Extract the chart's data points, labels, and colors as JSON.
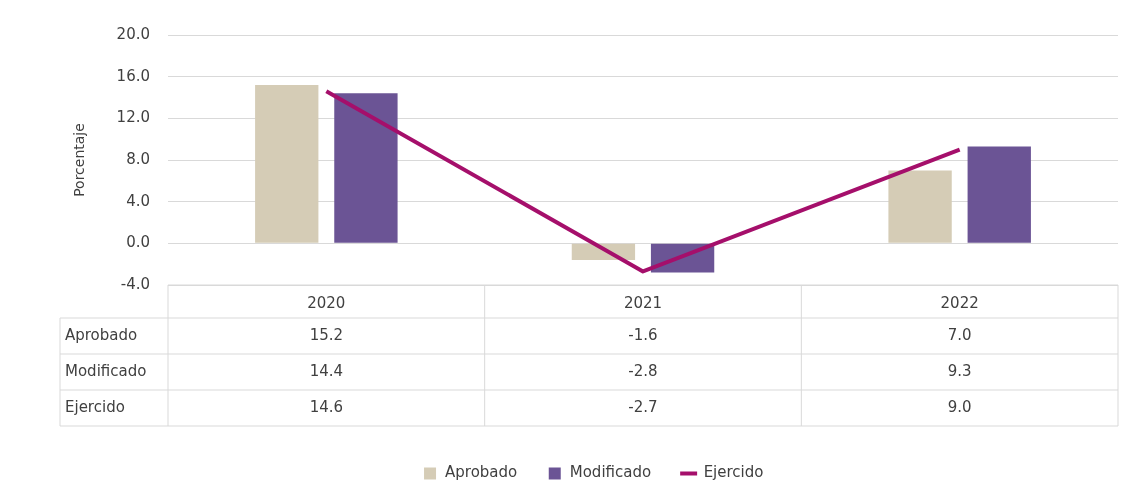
{
  "chart_data": {
    "type": "bar",
    "ylabel": "Porcentaje",
    "categories": [
      "2020",
      "2021",
      "2022"
    ],
    "series": [
      {
        "name": "Aprobado",
        "color": "#d5ccb6",
        "values": [
          15.2,
          -1.6,
          7.0
        ],
        "value_labels": [
          "15.2",
          "-1.6",
          "7.0"
        ]
      },
      {
        "name": "Modificado",
        "color": "#6b5495",
        "values": [
          14.4,
          -2.8,
          9.3
        ],
        "value_labels": [
          "14.4",
          "-2.8",
          "9.3"
        ]
      },
      {
        "name": "Ejercido",
        "type": "line",
        "color": "#a50f6b",
        "values": [
          14.6,
          -2.7,
          9.0
        ],
        "value_labels": [
          "14.6",
          "-2.7",
          "9.0"
        ]
      }
    ],
    "ylim": [
      -4,
      20
    ],
    "yticks": [
      {
        "value": -4,
        "label": "-4.0"
      },
      {
        "value": 0,
        "label": "0.0"
      },
      {
        "value": 4,
        "label": "4.0"
      },
      {
        "value": 8,
        "label": "8.0"
      },
      {
        "value": 12,
        "label": "12.0"
      },
      {
        "value": 16,
        "label": "16.0"
      },
      {
        "value": 20,
        "label": "20.0"
      }
    ],
    "grid": "y",
    "legend": "bottom",
    "marker": "none",
    "line_style": "solid"
  }
}
